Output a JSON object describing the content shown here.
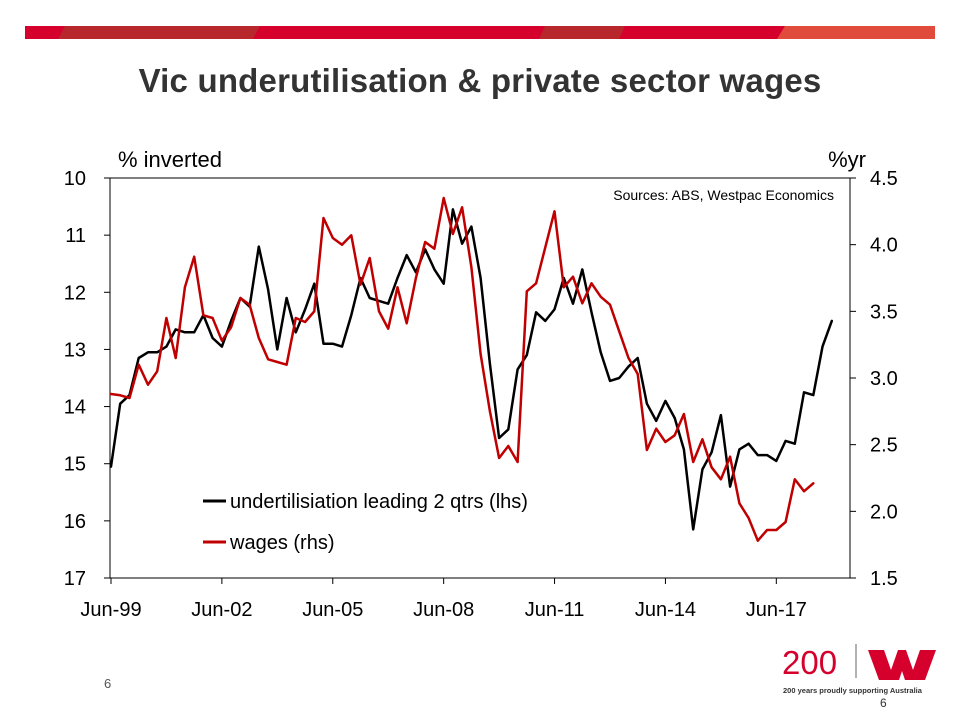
{
  "slide": {
    "title": "Vic underutilisation & private sector wages",
    "page_number": "6",
    "page_number_right": "6"
  },
  "brand": {
    "logo_number": "200",
    "tagline": "200 years proudly supporting Australia",
    "red": "#d5002b",
    "bar_colors": [
      "#d5002b",
      "#b8272c",
      "#e04b3c"
    ]
  },
  "chart_data": {
    "type": "line",
    "source_note": "Sources: ABS, Westpac Economics",
    "x_tick_labels": [
      "Jun-99",
      "Jun-02",
      "Jun-05",
      "Jun-08",
      "Jun-11",
      "Jun-14",
      "Jun-17"
    ],
    "x_range": [
      0,
      79
    ],
    "left_axis": {
      "label": "% inverted",
      "min": 10,
      "max": 17,
      "inverted": true,
      "ticks": [
        "10",
        "11",
        "12",
        "13",
        "14",
        "15",
        "16",
        "17"
      ]
    },
    "right_axis": {
      "label": "%yr",
      "min": 1.5,
      "max": 4.5,
      "ticks": [
        "4.5",
        "4.0",
        "3.5",
        "3.0",
        "2.5",
        "2.0",
        "1.5"
      ]
    },
    "series": [
      {
        "name": "undertilisiation leading 2 qtrs (lhs)",
        "axis": "left",
        "color": "#000000",
        "start_index": 0,
        "values": [
          15.05,
          13.95,
          13.8,
          13.15,
          13.05,
          13.05,
          12.95,
          12.65,
          12.7,
          12.7,
          12.4,
          12.8,
          12.95,
          12.5,
          12.1,
          12.25,
          11.2,
          11.95,
          13.0,
          12.1,
          12.7,
          12.3,
          11.85,
          12.9,
          12.9,
          12.95,
          12.4,
          11.75,
          12.1,
          12.15,
          12.2,
          11.75,
          11.35,
          11.65,
          11.25,
          11.6,
          11.85,
          10.55,
          11.15,
          10.85,
          11.75,
          13.25,
          14.55,
          14.4,
          13.35,
          13.1,
          12.35,
          12.5,
          12.3,
          11.75,
          12.2,
          11.6,
          12.35,
          13.05,
          13.55,
          13.5,
          13.3,
          13.15,
          13.95,
          14.25,
          13.9,
          14.2,
          14.75,
          16.15,
          15.1,
          14.8,
          14.15,
          15.4,
          14.75,
          14.65,
          14.85,
          14.85,
          14.95,
          14.6,
          14.65,
          13.75,
          13.8,
          12.95,
          12.5
        ]
      },
      {
        "name": "wages (rhs)",
        "axis": "right",
        "color": "#c00000",
        "start_index": 0,
        "values": [
          2.88,
          2.87,
          2.85,
          3.1,
          2.95,
          3.05,
          3.45,
          3.15,
          3.68,
          3.91,
          3.47,
          3.45,
          3.28,
          3.38,
          3.6,
          3.55,
          3.3,
          3.14,
          3.12,
          3.1,
          3.45,
          3.42,
          3.5,
          4.2,
          4.05,
          4.0,
          4.07,
          3.7,
          3.9,
          3.5,
          3.37,
          3.68,
          3.41,
          3.75,
          4.02,
          3.97,
          4.35,
          4.08,
          4.28,
          3.83,
          3.18,
          2.75,
          2.4,
          2.49,
          2.37,
          3.65,
          3.71,
          3.98,
          4.25,
          3.68,
          3.76,
          3.56,
          3.71,
          3.61,
          3.55,
          3.35,
          3.15,
          3.03,
          2.46,
          2.62,
          2.52,
          2.57,
          2.73,
          2.37,
          2.54,
          2.33,
          2.24,
          2.41,
          2.06,
          1.95,
          1.78,
          1.86,
          1.86,
          1.92,
          2.24,
          2.15,
          2.21
        ]
      }
    ]
  }
}
